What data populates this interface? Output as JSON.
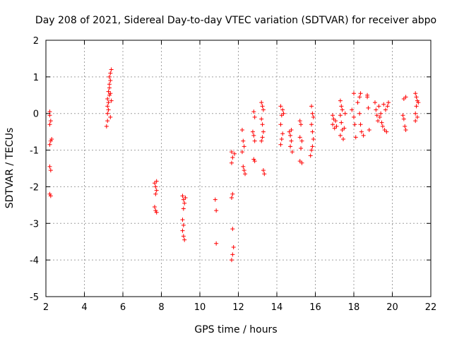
{
  "chart_data": {
    "type": "scatter",
    "title": "Day 208 of 2021, Sidereal Day-to-day VTEC variation (SDTVAR) for receiver abpo",
    "xlabel": "GPS time / hours",
    "ylabel": "SDTVAR / TECUs",
    "xlim": [
      2,
      22
    ],
    "ylim": [
      -5,
      2
    ],
    "xticks": [
      2,
      4,
      6,
      8,
      10,
      12,
      14,
      16,
      18,
      20,
      22
    ],
    "yticks": [
      -5,
      -4,
      -3,
      -2,
      -1,
      0,
      1,
      2
    ],
    "grid": true,
    "marker": "+",
    "marker_color": "#ff0000",
    "series": [
      {
        "name": "SDTVAR",
        "points": [
          [
            2.2,
            0.05
          ],
          [
            2.2,
            -0.05
          ],
          [
            2.25,
            -0.2
          ],
          [
            2.2,
            -0.3
          ],
          [
            2.25,
            -0.75
          ],
          [
            2.2,
            -0.85
          ],
          [
            2.3,
            -0.7
          ],
          [
            2.2,
            -1.45
          ],
          [
            2.25,
            -1.55
          ],
          [
            2.2,
            -2.2
          ],
          [
            2.25,
            -2.25
          ],
          [
            5.15,
            -0.35
          ],
          [
            5.2,
            -0.2
          ],
          [
            5.2,
            0.0
          ],
          [
            5.25,
            0.1
          ],
          [
            5.2,
            0.2
          ],
          [
            5.25,
            0.3
          ],
          [
            5.2,
            0.4
          ],
          [
            5.3,
            0.5
          ],
          [
            5.25,
            0.6
          ],
          [
            5.3,
            0.7
          ],
          [
            5.3,
            0.8
          ],
          [
            5.35,
            0.9
          ],
          [
            5.3,
            1.0
          ],
          [
            5.35,
            1.1
          ],
          [
            5.4,
            1.2
          ],
          [
            5.35,
            -0.1
          ],
          [
            5.4,
            0.35
          ],
          [
            5.35,
            0.55
          ],
          [
            7.65,
            -1.9
          ],
          [
            7.7,
            -2.0
          ],
          [
            7.75,
            -2.1
          ],
          [
            7.7,
            -2.2
          ],
          [
            7.65,
            -2.55
          ],
          [
            7.7,
            -2.65
          ],
          [
            7.75,
            -2.7
          ],
          [
            7.75,
            -1.85
          ],
          [
            9.1,
            -2.25
          ],
          [
            9.15,
            -2.35
          ],
          [
            9.2,
            -2.45
          ],
          [
            9.15,
            -2.6
          ],
          [
            9.1,
            -2.9
          ],
          [
            9.15,
            -3.05
          ],
          [
            9.1,
            -3.2
          ],
          [
            9.15,
            -3.35
          ],
          [
            9.2,
            -3.45
          ],
          [
            9.25,
            -2.3
          ],
          [
            10.8,
            -2.35
          ],
          [
            10.85,
            -2.65
          ],
          [
            10.85,
            -3.55
          ],
          [
            11.65,
            -1.05
          ],
          [
            11.7,
            -1.2
          ],
          [
            11.65,
            -1.35
          ],
          [
            11.7,
            -2.2
          ],
          [
            11.65,
            -2.3
          ],
          [
            11.7,
            -3.15
          ],
          [
            11.75,
            -3.65
          ],
          [
            11.7,
            -3.85
          ],
          [
            11.65,
            -4.0
          ],
          [
            11.8,
            -1.1
          ],
          [
            12.2,
            -0.45
          ],
          [
            12.25,
            -0.75
          ],
          [
            12.3,
            -0.9
          ],
          [
            12.2,
            -1.05
          ],
          [
            12.25,
            -1.45
          ],
          [
            12.3,
            -1.55
          ],
          [
            12.35,
            -1.65
          ],
          [
            12.8,
            0.05
          ],
          [
            12.85,
            -0.1
          ],
          [
            12.75,
            -0.5
          ],
          [
            12.8,
            -0.6
          ],
          [
            12.85,
            -0.75
          ],
          [
            12.8,
            -1.25
          ],
          [
            12.85,
            -1.3
          ],
          [
            13.2,
            0.3
          ],
          [
            13.25,
            0.2
          ],
          [
            13.3,
            0.1
          ],
          [
            13.2,
            -0.15
          ],
          [
            13.25,
            -0.3
          ],
          [
            13.3,
            -0.5
          ],
          [
            13.25,
            -0.65
          ],
          [
            13.2,
            -0.75
          ],
          [
            13.3,
            -1.55
          ],
          [
            13.35,
            -1.65
          ],
          [
            14.2,
            0.2
          ],
          [
            14.3,
            0.1
          ],
          [
            14.25,
            -0.05
          ],
          [
            14.2,
            -0.3
          ],
          [
            14.3,
            -0.55
          ],
          [
            14.25,
            -0.7
          ],
          [
            14.2,
            -0.85
          ],
          [
            14.35,
            0.0
          ],
          [
            14.65,
            -0.5
          ],
          [
            14.7,
            -0.6
          ],
          [
            14.75,
            -0.75
          ],
          [
            14.7,
            -0.9
          ],
          [
            14.8,
            -1.05
          ],
          [
            14.75,
            -0.45
          ],
          [
            15.2,
            -0.2
          ],
          [
            15.25,
            -0.3
          ],
          [
            15.2,
            -0.65
          ],
          [
            15.3,
            -0.75
          ],
          [
            15.25,
            -0.95
          ],
          [
            15.2,
            -1.3
          ],
          [
            15.3,
            -1.35
          ],
          [
            15.8,
            0.2
          ],
          [
            15.85,
            0.0
          ],
          [
            15.9,
            -0.1
          ],
          [
            15.8,
            -0.3
          ],
          [
            15.85,
            -0.5
          ],
          [
            15.9,
            -0.7
          ],
          [
            15.85,
            -0.9
          ],
          [
            15.8,
            -1.0
          ],
          [
            15.75,
            -1.15
          ],
          [
            16.9,
            -0.05
          ],
          [
            16.95,
            -0.15
          ],
          [
            16.9,
            -0.3
          ],
          [
            17.0,
            -0.4
          ],
          [
            17.05,
            -0.2
          ],
          [
            17.1,
            -0.35
          ],
          [
            17.3,
            0.35
          ],
          [
            17.35,
            0.2
          ],
          [
            17.4,
            0.1
          ],
          [
            17.3,
            -0.05
          ],
          [
            17.35,
            -0.25
          ],
          [
            17.4,
            -0.45
          ],
          [
            17.3,
            -0.6
          ],
          [
            17.45,
            -0.7
          ],
          [
            17.5,
            -0.4
          ],
          [
            17.55,
            0.0
          ],
          [
            17.9,
            0.1
          ],
          [
            18.0,
            -0.1
          ],
          [
            18.05,
            -0.3
          ],
          [
            18.1,
            -0.65
          ],
          [
            18.0,
            0.55
          ],
          [
            18.2,
            0.3
          ],
          [
            18.3,
            0.45
          ],
          [
            18.35,
            0.55
          ],
          [
            18.3,
            0.0
          ],
          [
            18.35,
            -0.3
          ],
          [
            18.4,
            -0.5
          ],
          [
            18.5,
            -0.6
          ],
          [
            18.7,
            0.45
          ],
          [
            18.75,
            0.15
          ],
          [
            18.8,
            -0.45
          ],
          [
            18.7,
            0.5
          ],
          [
            19.1,
            0.3
          ],
          [
            19.15,
            0.1
          ],
          [
            19.2,
            -0.05
          ],
          [
            19.25,
            -0.2
          ],
          [
            19.3,
            0.2
          ],
          [
            19.35,
            -0.1
          ],
          [
            19.4,
            0.0
          ],
          [
            19.45,
            -0.25
          ],
          [
            19.5,
            -0.35
          ],
          [
            19.6,
            -0.45
          ],
          [
            19.7,
            -0.5
          ],
          [
            19.55,
            0.25
          ],
          [
            19.65,
            0.1
          ],
          [
            19.75,
            0.2
          ],
          [
            19.8,
            0.3
          ],
          [
            20.55,
            -0.05
          ],
          [
            20.6,
            -0.15
          ],
          [
            20.65,
            -0.35
          ],
          [
            20.7,
            -0.45
          ],
          [
            20.6,
            0.4
          ],
          [
            20.7,
            0.45
          ],
          [
            21.2,
            0.55
          ],
          [
            21.25,
            0.45
          ],
          [
            21.3,
            0.35
          ],
          [
            21.25,
            0.2
          ],
          [
            21.2,
            0.0
          ],
          [
            21.3,
            -0.1
          ],
          [
            21.35,
            0.3
          ],
          [
            21.2,
            -0.2
          ]
        ]
      }
    ]
  }
}
